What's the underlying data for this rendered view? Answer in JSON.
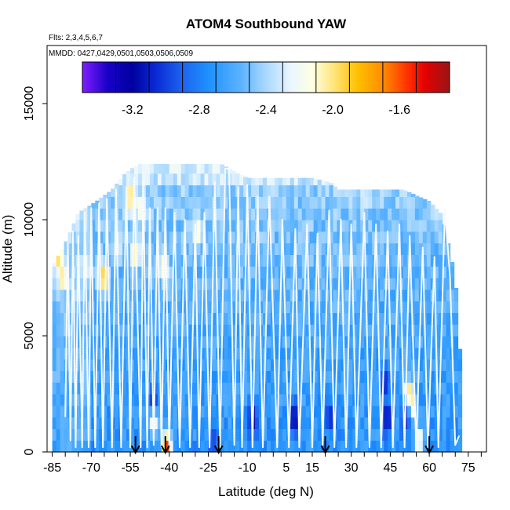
{
  "chart_data": {
    "type": "heatmap",
    "title": "ATOM4 Southbound YAW",
    "subtitle_flights": "Flts: 2,3,4,5,6,7",
    "subtitle_dates": "MMDD: 0427,0429,0501,0503,0506,0509",
    "xlabel": "Latitude (deg N)",
    "ylabel": "Altitude (m)",
    "xlim": [
      -87,
      82
    ],
    "ylim": [
      0,
      17500
    ],
    "x_tick_labels": [
      "-85",
      "-70",
      "-55",
      "-40",
      "-25",
      "-10",
      "5",
      "15",
      "30",
      "45",
      "60",
      "75"
    ],
    "x_minor_ticks": [
      -85,
      -80,
      -75,
      -70,
      -65,
      -60,
      -55,
      -50,
      -45,
      -40,
      -35,
      -30,
      -25,
      -20,
      -15,
      -10,
      -5,
      0,
      5,
      10,
      15,
      20,
      25,
      30,
      35,
      40,
      45,
      50,
      55,
      60,
      65,
      70,
      75,
      80
    ],
    "y_ticks": [
      0,
      5000,
      10000,
      15000
    ],
    "y_tick_labels": [
      "0",
      "5000",
      "10000",
      "15000"
    ],
    "colorbar": {
      "range": [
        -3.5,
        -1.3
      ],
      "tick_values": [
        -3.2,
        -2.8,
        -2.4,
        -2.0,
        -1.6
      ],
      "tick_labels": [
        "-3.2",
        "-2.8",
        "-2.4",
        "-2.0",
        "-1.6"
      ],
      "bounds": [
        -3.5,
        -3.3,
        -3.1,
        -2.9,
        -2.7,
        -2.5,
        -2.3,
        -2.1,
        -1.9,
        -1.7,
        -1.5,
        -1.3
      ],
      "stops": [
        {
          "v": -3.5,
          "c": "#7f1fff"
        },
        {
          "v": -3.35,
          "c": "#1a00c8"
        },
        {
          "v": -3.2,
          "c": "#0000a0"
        },
        {
          "v": -3.05,
          "c": "#0a2ed8"
        },
        {
          "v": -2.9,
          "c": "#1e64f0"
        },
        {
          "v": -2.75,
          "c": "#1e90ff"
        },
        {
          "v": -2.55,
          "c": "#5cb3ff"
        },
        {
          "v": -2.4,
          "c": "#a9d8ff"
        },
        {
          "v": -2.25,
          "c": "#eaf6ff"
        },
        {
          "v": -2.12,
          "c": "#ffffe0"
        },
        {
          "v": -2.0,
          "c": "#ffe680"
        },
        {
          "v": -1.85,
          "c": "#ffc000"
        },
        {
          "v": -1.7,
          "c": "#ff8c00"
        },
        {
          "v": -1.55,
          "c": "#ff3000"
        },
        {
          "v": -1.45,
          "c": "#e60000"
        },
        {
          "v": -1.3,
          "c": "#9a1515"
        }
      ]
    },
    "coverage": {
      "lat_start": -85,
      "lat_end": 72,
      "lat_step": 1.5,
      "envelope": [
        {
          "lat": -85,
          "top": 8000
        },
        {
          "lat": -80,
          "top": 9000
        },
        {
          "lat": -75,
          "top": 10300
        },
        {
          "lat": -68,
          "top": 10800
        },
        {
          "lat": -62,
          "top": 11300
        },
        {
          "lat": -57,
          "top": 12000
        },
        {
          "lat": -52,
          "top": 12400
        },
        {
          "lat": -20,
          "top": 12400
        },
        {
          "lat": -17,
          "top": 12200
        },
        {
          "lat": -10,
          "top": 11800
        },
        {
          "lat": 15,
          "top": 11800
        },
        {
          "lat": 22,
          "top": 11600
        },
        {
          "lat": 25,
          "top": 11300
        },
        {
          "lat": 50,
          "top": 11300
        },
        {
          "lat": 60,
          "top": 10800
        },
        {
          "lat": 65,
          "top": 10200
        },
        {
          "lat": 70,
          "top": 7500
        },
        {
          "lat": 72,
          "top": 4000
        }
      ]
    },
    "anomalies": [
      {
        "lat": -82.5,
        "alt": 8500,
        "value": -1.9
      },
      {
        "lat": -81,
        "alt": 7500,
        "value": -2.0
      },
      {
        "lat": -65.5,
        "alt": 7500,
        "value": -1.75
      },
      {
        "lat": -55,
        "alt": 11000,
        "value": -1.9
      },
      {
        "lat": -53,
        "alt": 8500,
        "value": -2.0
      },
      {
        "lat": -51,
        "alt": 10500,
        "value": -2.1
      },
      {
        "lat": -42,
        "alt": 8000,
        "value": -2.05
      },
      {
        "lat": -46,
        "alt": 1500,
        "value": -1.9
      },
      {
        "lat": -41,
        "alt": 300,
        "value": -1.55
      },
      {
        "lat": -29,
        "alt": 9500,
        "value": -2.1
      },
      {
        "lat": 52,
        "alt": 2500,
        "value": -1.95
      },
      {
        "lat": 53,
        "alt": 2000,
        "value": -1.85
      },
      {
        "lat": 56,
        "alt": 500,
        "value": -2.05
      },
      {
        "lat": -46,
        "alt": 2200,
        "value": -3.05
      },
      {
        "lat": -8,
        "alt": 1500,
        "value": -3.25
      },
      {
        "lat": 8,
        "alt": 1500,
        "value": -3.25
      },
      {
        "lat": 22,
        "alt": 1500,
        "value": -3.1
      },
      {
        "lat": 43,
        "alt": 3000,
        "value": -3.1
      },
      {
        "lat": 44,
        "alt": 1500,
        "value": -3.2
      },
      {
        "lat": 51,
        "alt": 1500,
        "value": -3.15
      },
      {
        "lat": -23,
        "alt": 500,
        "value": -3.0
      },
      {
        "lat": -72,
        "alt": 8000,
        "value": -2.2
      },
      {
        "lat": -60,
        "alt": 9000,
        "value": -2.15
      },
      {
        "lat": 35,
        "alt": 11000,
        "value": -2.25
      },
      {
        "lat": 62,
        "alt": 10500,
        "value": -2.3
      }
    ],
    "flight_track": [
      [
        -80,
        1500
      ],
      [
        -79,
        9000
      ],
      [
        -78,
        500
      ],
      [
        -77,
        9500
      ],
      [
        -76,
        200
      ],
      [
        -75,
        9300
      ],
      [
        -73.5,
        200
      ],
      [
        -72.5,
        10300
      ],
      [
        -71,
        200
      ],
      [
        -70,
        10500
      ],
      [
        -68.5,
        200
      ],
      [
        -67,
        10700
      ],
      [
        -65.5,
        200
      ],
      [
        -64,
        10900
      ],
      [
        -62,
        200
      ],
      [
        -60.5,
        11300
      ],
      [
        -58.5,
        200
      ],
      [
        -56.5,
        11400
      ],
      [
        -55,
        200
      ],
      [
        -53.5,
        11800
      ],
      [
        -51,
        200
      ],
      [
        -50,
        11700
      ],
      [
        -48.5,
        200
      ],
      [
        -47.5,
        10500
      ],
      [
        -46,
        300
      ],
      [
        -44.5,
        10500
      ],
      [
        -43,
        200
      ],
      [
        -41.5,
        10500
      ],
      [
        -40,
        300
      ],
      [
        -38,
        10300
      ],
      [
        -36,
        200
      ],
      [
        -34,
        10000
      ],
      [
        -32,
        200
      ],
      [
        -30,
        9800
      ],
      [
        -28.5,
        200
      ],
      [
        -26.5,
        10300
      ],
      [
        -24.5,
        200
      ],
      [
        -22.5,
        11600
      ],
      [
        -20.5,
        200
      ],
      [
        -18.5,
        12200
      ],
      [
        -17,
        12200
      ],
      [
        -15,
        300
      ],
      [
        -13.5,
        11400
      ],
      [
        -12,
        200
      ],
      [
        -10,
        11500
      ],
      [
        -8,
        200
      ],
      [
        -6,
        11000
      ],
      [
        -4,
        200
      ],
      [
        -1.5,
        11000
      ],
      [
        1.5,
        200
      ],
      [
        3.5,
        10000
      ],
      [
        6,
        200
      ],
      [
        8.5,
        9600
      ],
      [
        10,
        200
      ],
      [
        13,
        9800
      ],
      [
        15,
        200
      ],
      [
        17,
        9400
      ],
      [
        19,
        300
      ],
      [
        21.5,
        10400
      ],
      [
        23.5,
        200
      ],
      [
        26,
        10000
      ],
      [
        28,
        200
      ],
      [
        30,
        9800
      ],
      [
        32,
        200
      ],
      [
        35,
        10300
      ],
      [
        37,
        200
      ],
      [
        39.5,
        9800
      ],
      [
        41.5,
        200
      ],
      [
        44,
        9500
      ],
      [
        46,
        200
      ],
      [
        48.5,
        9800
      ],
      [
        50.5,
        200
      ],
      [
        52.5,
        9300
      ],
      [
        55,
        200
      ],
      [
        57.5,
        8800
      ],
      [
        59.5,
        200
      ],
      [
        62,
        8400
      ],
      [
        63.5,
        200
      ],
      [
        66,
        10500
      ],
      [
        68,
        7500
      ],
      [
        70,
        300
      ],
      [
        71.5,
        700
      ]
    ],
    "arrow_markers_lat": [
      -53,
      -41.5,
      -21,
      20,
      60
    ]
  }
}
